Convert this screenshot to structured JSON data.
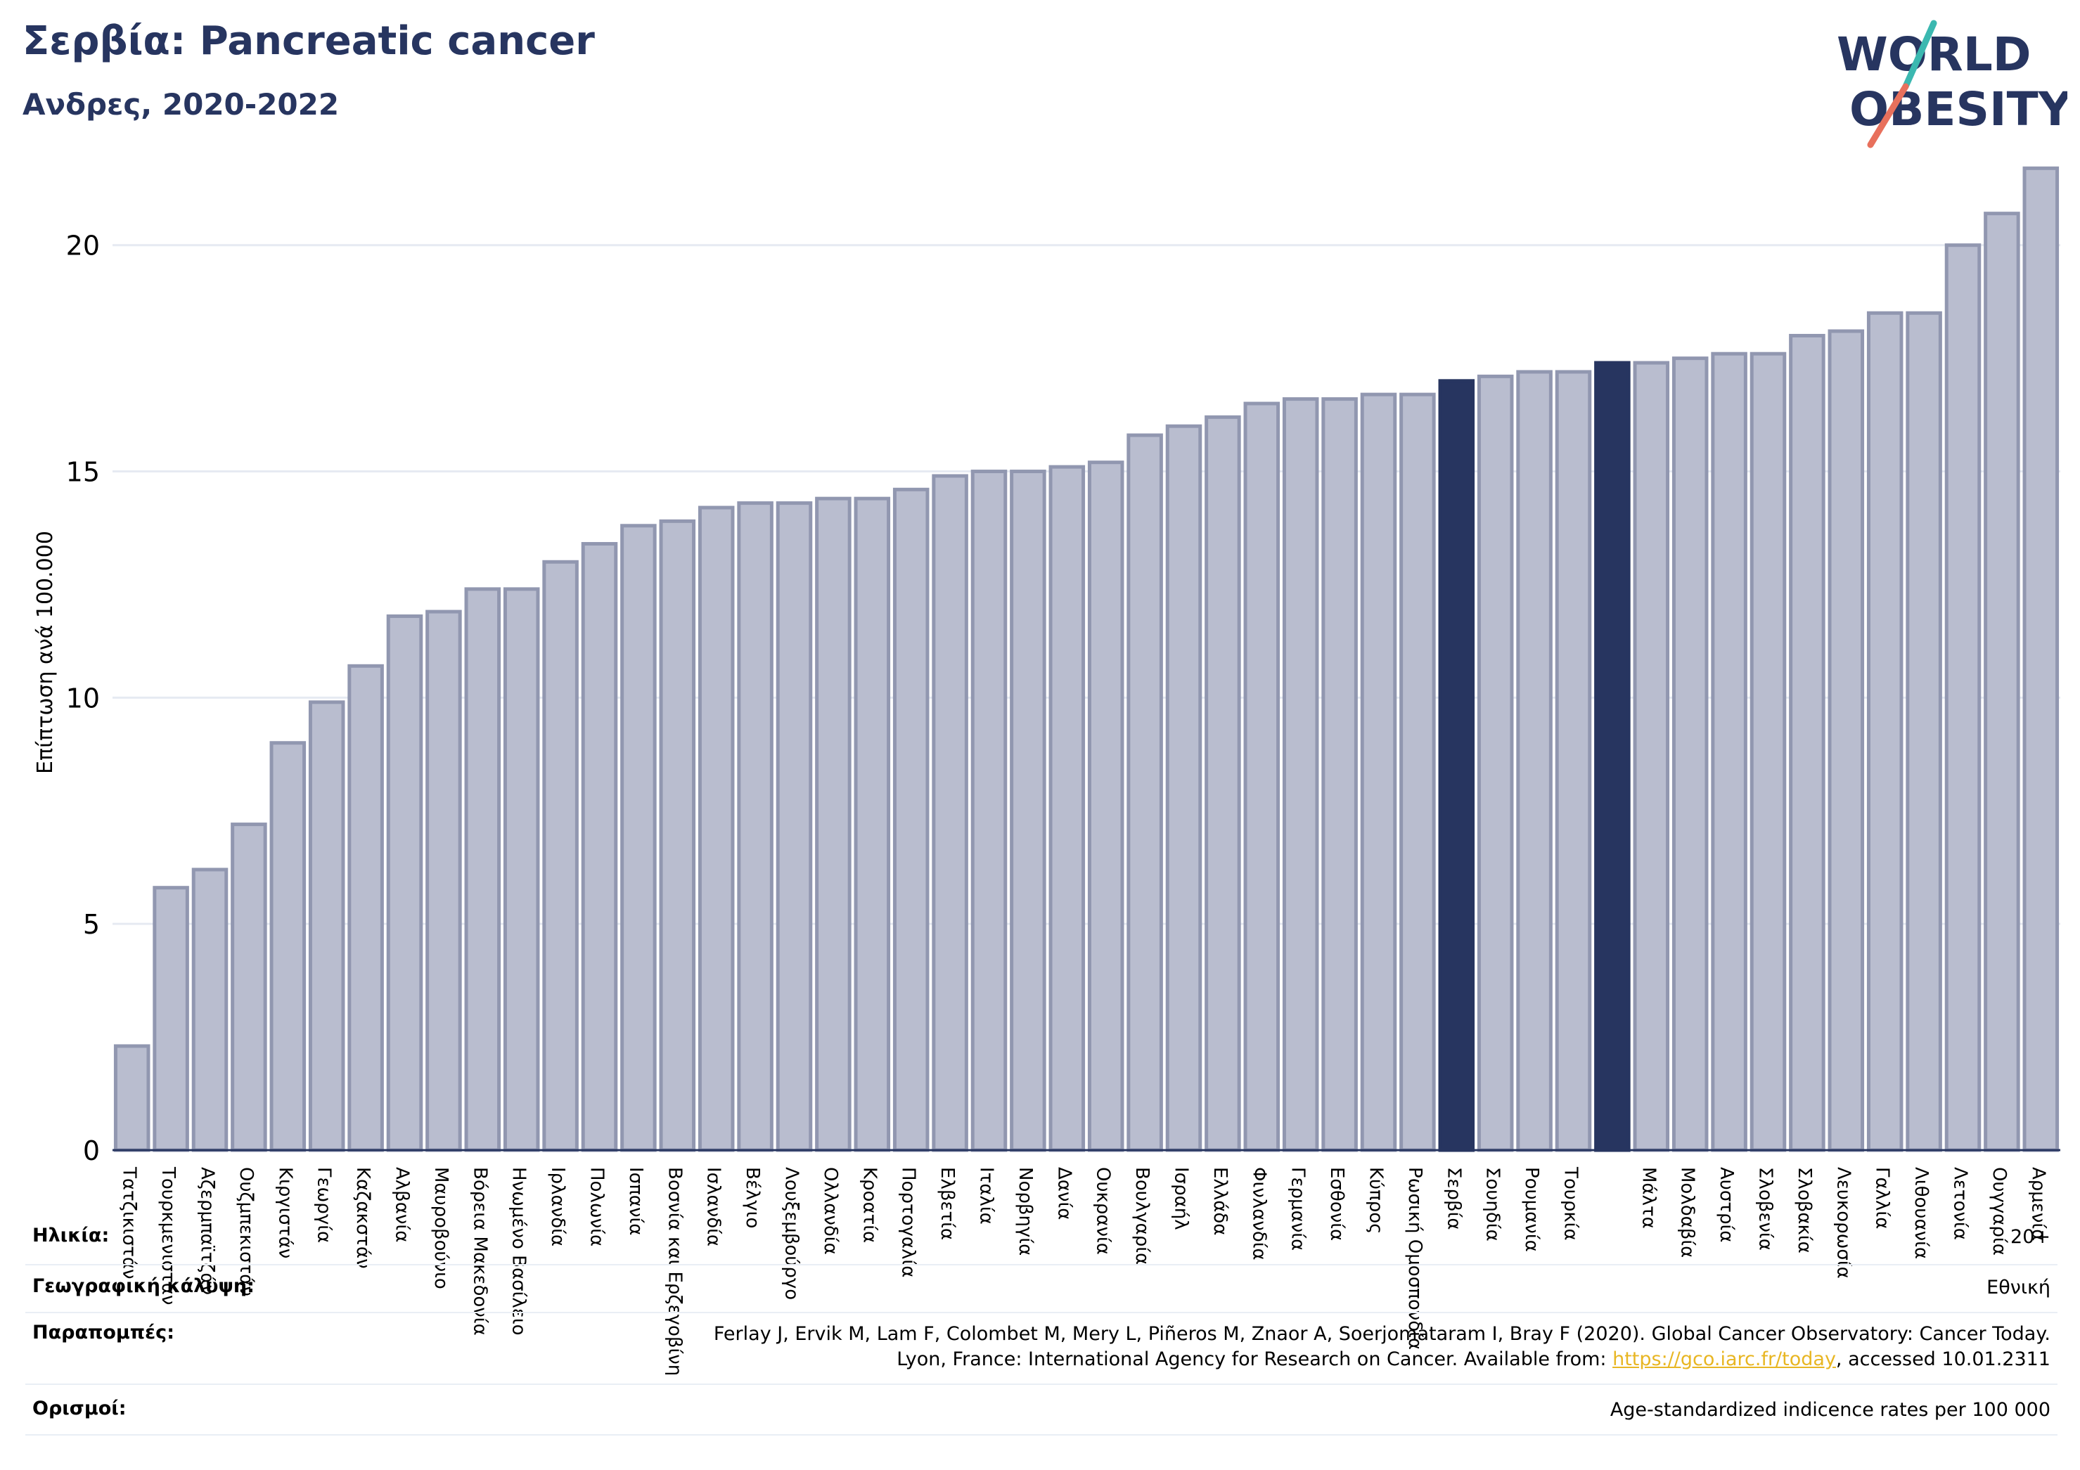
{
  "header": {
    "title": "Σερβία: Pancreatic cancer",
    "subtitle": "Ανδρες, 2020-2022"
  },
  "logo": {
    "line1": "WORLD",
    "line2": "OBESITY"
  },
  "colors": {
    "bar": "#b9bdcf",
    "bar_edge": "#9197b0",
    "highlight": "#273560",
    "text": "#273560"
  },
  "chart_data": {
    "type": "bar",
    "ylabel": "Επίπτωση ανά 100.000",
    "ylim": [
      0,
      22
    ],
    "yticks": [
      0,
      5,
      10,
      15,
      20
    ],
    "grid": true,
    "categories": [
      "Τατζικιστάν",
      "Τουρκμενιστάν",
      "Αζερμπαϊτζάν",
      "Ουζμπεκιστάν",
      "Κιργιστάν",
      "Γεωργία",
      "Καζακστάν",
      "Αλβανία",
      "Μαυροβούνιο",
      "Βόρεια Μακεδονία",
      "Ηνωμένο Βασίλειο",
      "Ιρλανδία",
      "Πολωνία",
      "Ισπανία",
      "Βοσνία και Ερζεγοβίνη",
      "Ισλανδία",
      "Βέλγιο",
      "Λουξεμβούργο",
      "Ολλανδία",
      "Κροατία",
      "Πορτογαλία",
      "Ελβετία",
      "Ιταλία",
      "Νορβηγία",
      "Δανία",
      "Ουκρανία",
      "Βουλγαρία",
      "Ισραήλ",
      "Ελλάδα",
      "Φινλανδία",
      "Γερμανία",
      "Εσθονία",
      "Κύπρος",
      "Ρωσική Ομοσπονδία",
      "Σερβία",
      "Σουηδία",
      "Ρουμανία",
      "Τουρκία",
      "",
      "Μάλτα",
      "Μολδαβία",
      "Αυστρία",
      "Σλοβενία",
      "Σλοβακία",
      "Λευκορωσία",
      "Γαλλία",
      "Λιθουανία",
      "Λετονία",
      "Ουγγαρία",
      "Αρμενία"
    ],
    "values": [
      2.3,
      5.8,
      6.2,
      7.2,
      9.0,
      9.9,
      10.7,
      11.8,
      11.9,
      12.4,
      12.4,
      13.0,
      13.4,
      13.8,
      13.9,
      14.2,
      14.3,
      14.3,
      14.4,
      14.4,
      14.6,
      14.9,
      15.0,
      15.0,
      15.1,
      15.2,
      15.8,
      16.0,
      16.2,
      16.5,
      16.6,
      16.6,
      16.7,
      16.7,
      17.0,
      17.1,
      17.2,
      17.2,
      17.4,
      17.4,
      17.5,
      17.6,
      17.6,
      18.0,
      18.1,
      18.5,
      18.5,
      20.0,
      20.7,
      21.7
    ],
    "highlighted": [
      "Σερβία",
      ""
    ]
  },
  "footer": {
    "age_label": "Ηλικία:",
    "age_value": "20+",
    "coverage_label": "Γεωγραφική κάλυψη:",
    "coverage_value": "Εθνική",
    "refs_label": "Παραπομπές:",
    "refs_line1": "Ferlay J, Ervik M, Lam F, Colombet M, Mery L, Piñeros M, Znaor A, Soerjomataram I, Bray F (2020). Global Cancer Observatory: Cancer Today.",
    "refs_line2_pre": "Lyon, France: International Agency for Research on Cancer. Available from: ",
    "refs_link": "https://gco.iarc.fr/today",
    "refs_line2_post": ", accessed 10.01.2311",
    "defs_label": "Ορισμοί:",
    "defs_value": "Age-standardized indicence rates per 100 000"
  }
}
